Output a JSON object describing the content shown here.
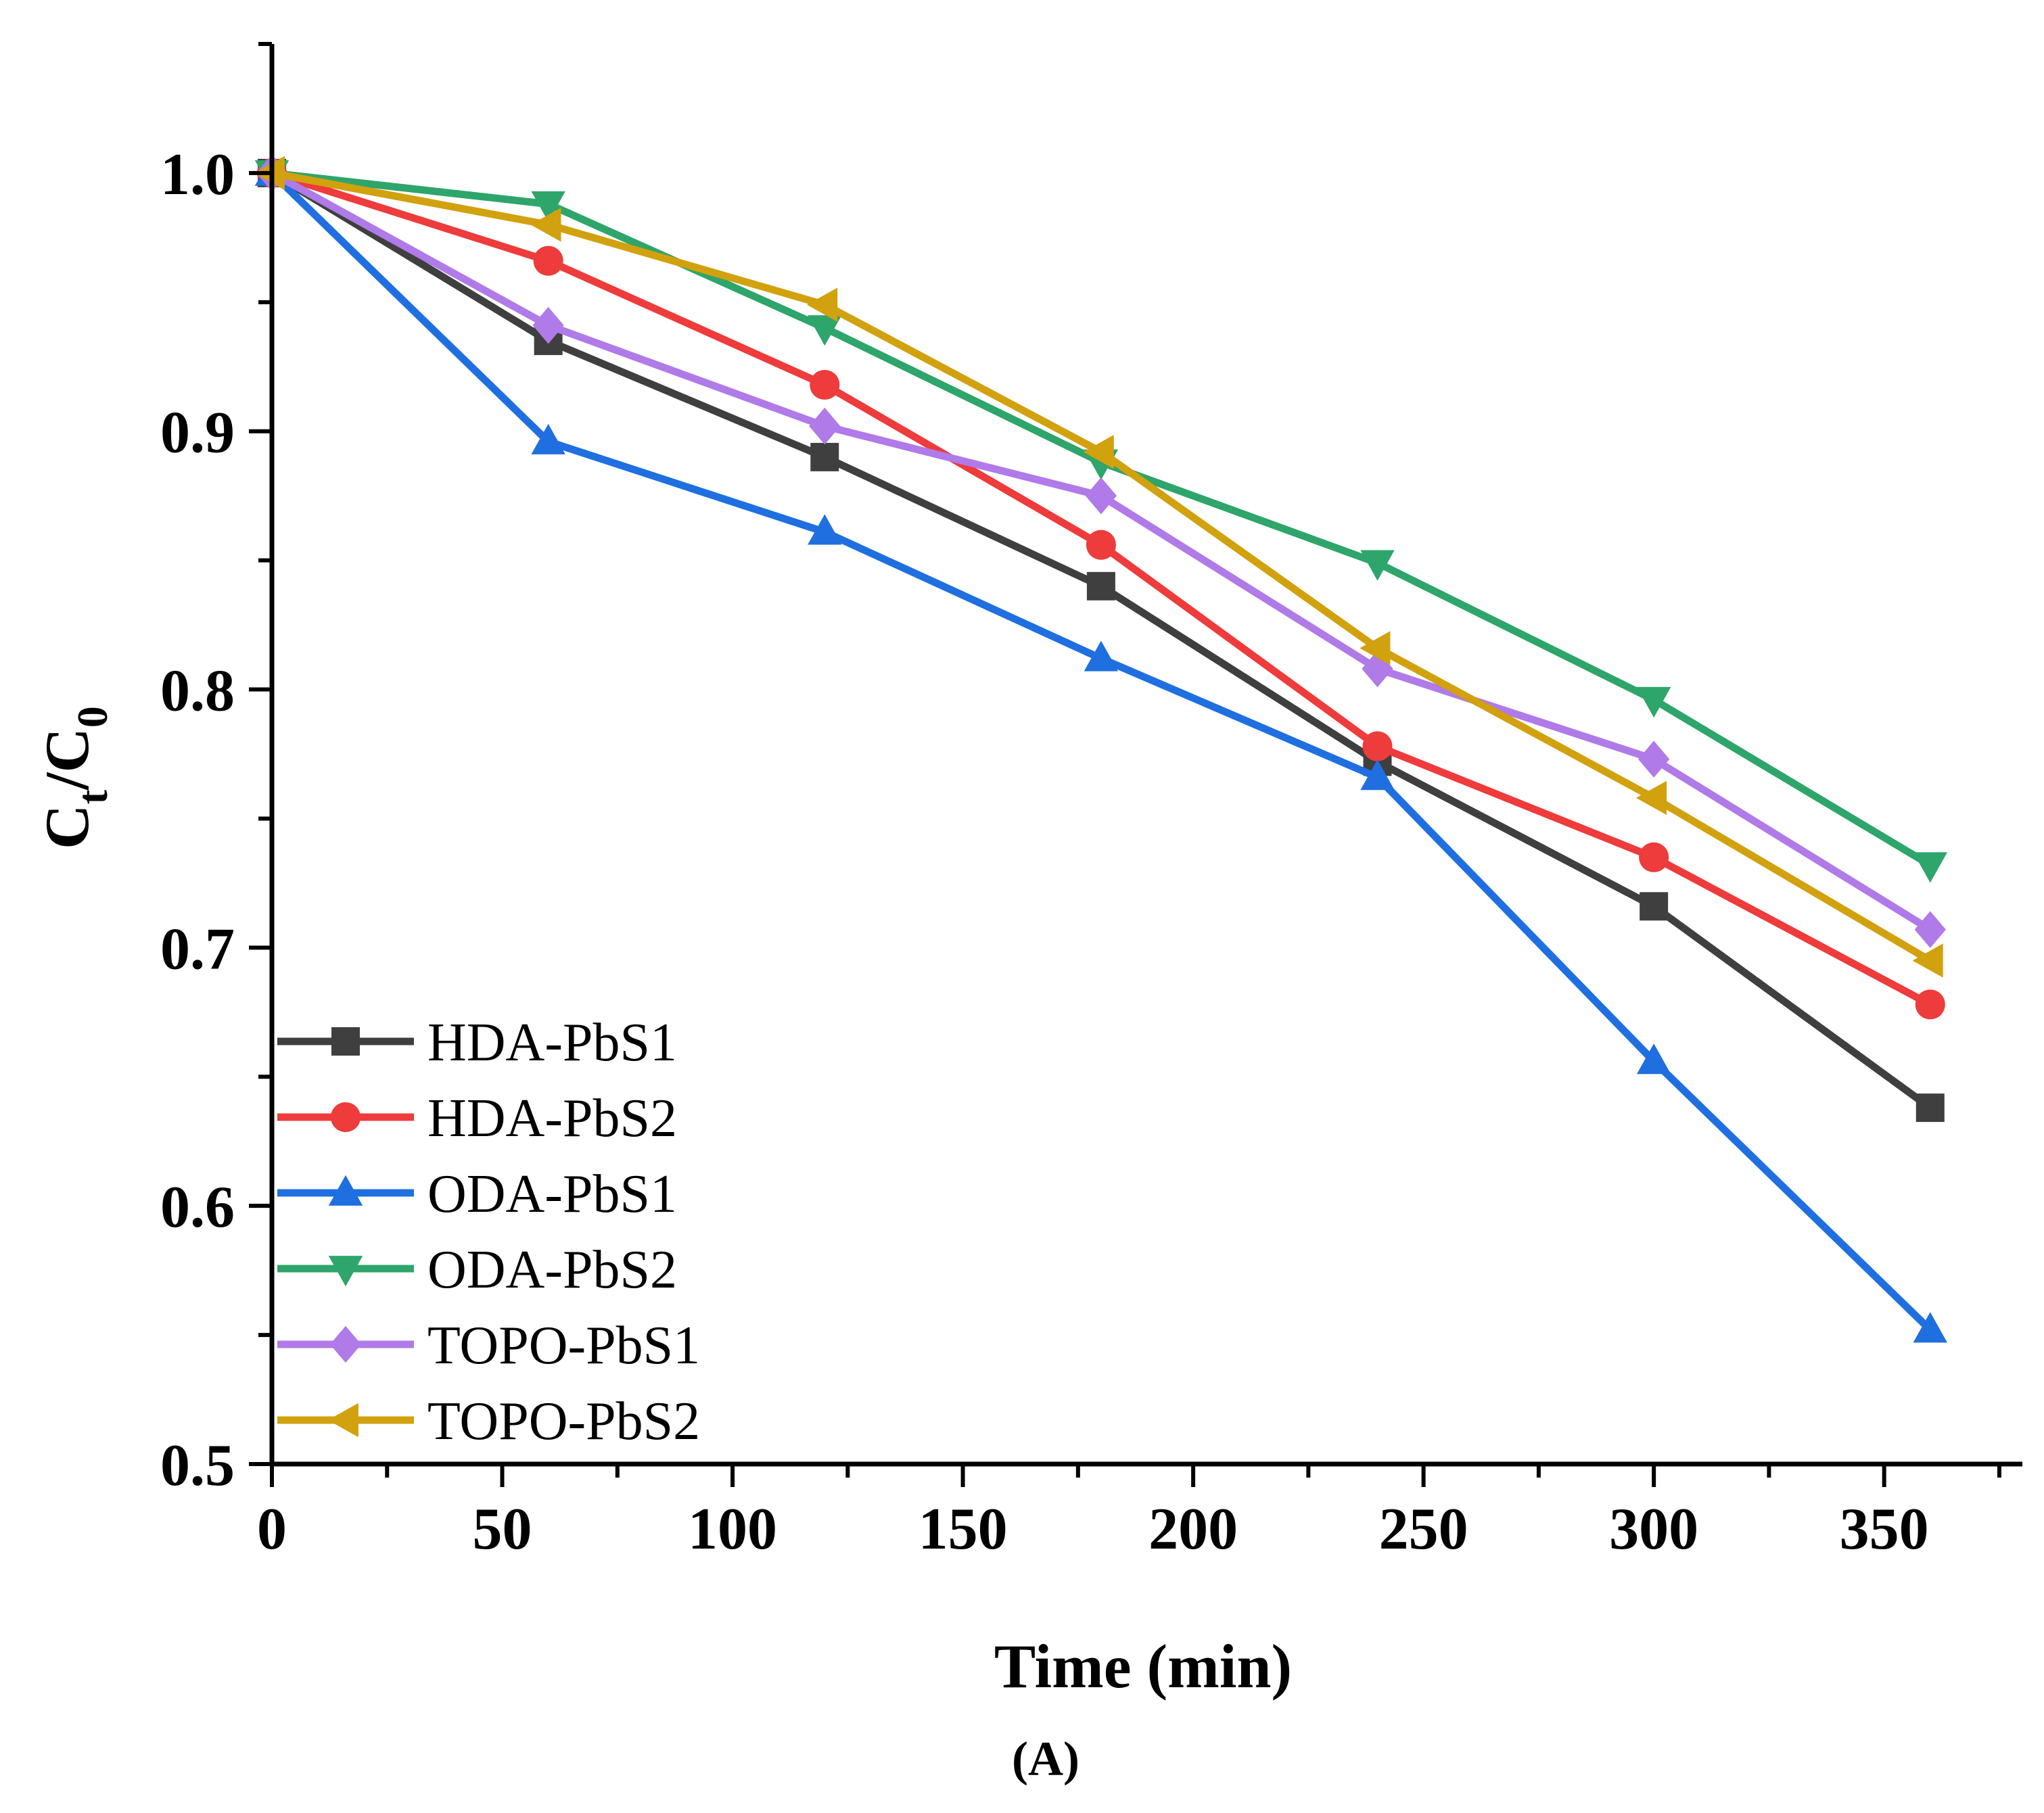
{
  "chart_data": {
    "type": "line",
    "title": "",
    "panel_label": "(A)",
    "xlabel": "Time (min)",
    "ylabel": {
      "main": "C",
      "sub1": "t",
      "sep": "/C",
      "sub2": "0"
    },
    "xlim": [
      0,
      380
    ],
    "ylim": [
      0.5,
      1.05
    ],
    "x_ticks": [
      0,
      50,
      100,
      150,
      200,
      250,
      300,
      350
    ],
    "y_ticks": [
      0.5,
      0.6,
      0.7,
      0.8,
      0.9,
      1.0
    ],
    "y_tick_labels": [
      "0.5",
      "0.6",
      "0.7",
      "0.8",
      "0.9",
      "1.0"
    ],
    "x": [
      0,
      60,
      120,
      180,
      240,
      300,
      360
    ],
    "legend_position": "bottom-left",
    "grid": false,
    "series": [
      {
        "name": "HDA-PbS1",
        "marker": "square",
        "color": "#3f3f3f",
        "values": [
          1.0,
          0.935,
          0.89,
          0.84,
          0.772,
          0.716,
          0.638
        ]
      },
      {
        "name": "HDA-PbS2",
        "marker": "circle",
        "color": "#ee3b3b",
        "values": [
          1.0,
          0.966,
          0.918,
          0.856,
          0.778,
          0.735,
          0.678
        ]
      },
      {
        "name": "ODA-PbS1",
        "marker": "triangle-up",
        "color": "#1f6fe0",
        "values": [
          1.0,
          0.896,
          0.861,
          0.812,
          0.766,
          0.656,
          0.552
        ]
      },
      {
        "name": "ODA-PbS2",
        "marker": "triangle-down",
        "color": "#2ea56a",
        "values": [
          1.0,
          0.988,
          0.94,
          0.888,
          0.849,
          0.796,
          0.732
        ]
      },
      {
        "name": "TOPO-PbS1",
        "marker": "diamond",
        "color": "#b07ae8",
        "values": [
          1.0,
          0.941,
          0.902,
          0.875,
          0.808,
          0.773,
          0.707
        ]
      },
      {
        "name": "TOPO-PbS2",
        "marker": "triangle-left",
        "color": "#d1a10e",
        "values": [
          1.0,
          0.98,
          0.949,
          0.892,
          0.816,
          0.758,
          0.695
        ]
      }
    ]
  }
}
